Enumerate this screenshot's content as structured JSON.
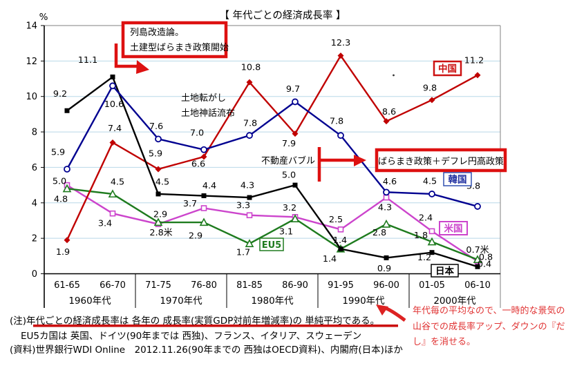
{
  "title": "【 年代ごとの経済成長率 】",
  "chart_data": {
    "type": "line",
    "y_unit": "%",
    "ylim": [
      0,
      14
    ],
    "y_ticks": [
      0,
      2,
      4,
      6,
      8,
      10,
      12,
      14
    ],
    "categories": [
      "61-65",
      "66-70",
      "71-75",
      "76-80",
      "81-85",
      "86-90",
      "91-95",
      "96-00",
      "01-05",
      "06-10"
    ],
    "decades": [
      "1960年代",
      "1970年代",
      "1980年代",
      "1990年代",
      "2000年代"
    ],
    "grid": true,
    "gridline_color": "#b8d8e8",
    "series": [
      {
        "name": "米国",
        "key": "us",
        "color": "#cc44cc",
        "marker": "square-open",
        "values": [
          5.0,
          3.4,
          2.8,
          3.7,
          3.3,
          3.2,
          2.5,
          4.3,
          2.4,
          0.7
        ],
        "labels": [
          "5.0",
          "3.4",
          "2.8米",
          "3.7",
          "3.3",
          "3.2",
          "2.5",
          "4.3",
          "2.4",
          "0.7米"
        ],
        "label_offsets": [
          [
            -11,
            -6
          ],
          [
            -11,
            14
          ],
          [
            4,
            12
          ],
          [
            -20,
            -7
          ],
          [
            -9,
            -15
          ],
          [
            -8,
            -14
          ],
          [
            -7,
            -15
          ],
          [
            -2,
            14
          ],
          [
            -9,
            -20
          ],
          [
            0,
            -17
          ]
        ]
      },
      {
        "name": "EU5",
        "key": "eu5",
        "color": "#1e7b1e",
        "marker": "triangle-open",
        "values": [
          4.8,
          4.5,
          2.9,
          2.9,
          1.7,
          3.1,
          1.4,
          2.8,
          1.8,
          0.8
        ],
        "labels": [
          "4.8",
          "4.5",
          "2.9",
          "2.9",
          "1.7",
          "3.1",
          "1.4",
          "2.8",
          "1.8",
          "0.8"
        ],
        "label_offsets": [
          [
            -9,
            15
          ],
          [
            7,
            -18
          ],
          [
            3,
            -12
          ],
          [
            -12,
            19
          ],
          [
            -9,
            12
          ],
          [
            -13,
            18
          ],
          [
            -1,
            -13
          ],
          [
            -10,
            12
          ],
          [
            -16,
            -10
          ],
          [
            12,
            -4
          ]
        ]
      },
      {
        "name": "中国",
        "key": "china",
        "color": "#c00000",
        "marker": "diamond-filled",
        "values": [
          1.9,
          7.4,
          5.9,
          6.6,
          10.8,
          7.9,
          12.3,
          8.6,
          9.8,
          11.2
        ],
        "labels": [
          "1.9",
          "7.4",
          "5.9",
          "6.6",
          "10.8",
          "7.9",
          "12.3",
          "8.6",
          "9.8",
          "11.2"
        ],
        "label_offsets": [
          [
            -6,
            17
          ],
          [
            3,
            -21
          ],
          [
            -4,
            -23
          ],
          [
            -8,
            10
          ],
          [
            2,
            -22
          ],
          [
            -9,
            14
          ],
          [
            0,
            -19
          ],
          [
            4,
            -14
          ],
          [
            -3,
            -18
          ],
          [
            -5,
            -22
          ]
        ]
      },
      {
        "name": "日本",
        "key": "japan",
        "color": "#000000",
        "marker": "square-filled",
        "values": [
          9.2,
          11.1,
          4.5,
          4.4,
          4.3,
          5.0,
          1.4,
          0.9,
          1.2,
          0.4
        ],
        "labels": [
          "9.2",
          "11.1",
          "4.5",
          "4.4",
          "4.3",
          "5.0",
          "1.4",
          "0.9",
          "1.2",
          "0.4"
        ],
        "label_offsets": [
          [
            -10,
            -25
          ],
          [
            -36,
            -25
          ],
          [
            6,
            -18
          ],
          [
            8,
            -15
          ],
          [
            -3,
            -18
          ],
          [
            -9,
            -15
          ],
          [
            -16,
            14
          ],
          [
            -3,
            15
          ],
          [
            -11,
            7
          ],
          [
            10,
            -4
          ]
        ]
      },
      {
        "name": "韓国",
        "key": "korea",
        "color": "#000090",
        "marker": "circle-open",
        "values": [
          5.9,
          10.6,
          7.6,
          7.0,
          7.8,
          9.7,
          7.8,
          4.6,
          4.5,
          3.8
        ],
        "labels": [
          "5.9",
          "10.6",
          "7.6",
          "7.0",
          "7.8",
          "9.7",
          "7.8",
          "4.6",
          "4.5",
          "3.8"
        ],
        "label_offsets": [
          [
            -13,
            -25
          ],
          [
            2,
            26
          ],
          [
            -3,
            -19
          ],
          [
            -10,
            -25
          ],
          [
            1,
            -18
          ],
          [
            -3,
            -19
          ],
          [
            -6,
            -21
          ],
          [
            5,
            -16
          ],
          [
            -3,
            -19
          ],
          [
            -6,
            -30
          ]
        ]
      }
    ]
  },
  "annotations": {
    "retto_line1": "列島改造論。",
    "retto_line2": "土建型ばらまき政策開始",
    "tochi_korogashi": "土地転がし",
    "tochi_shinwa": "土地神話流布",
    "fudosan_bubble": "不動産バブル",
    "baramaki": "ばらまき政策＋デフレ円高政策"
  },
  "notes": {
    "line1": "(注)年代ごとの経済成長率は 各年の 成長率(実質GDP対前年増減率)の 単純平均である。",
    "line2": "EU5カ国は 英国、ドイツ(90年までは 西独)、フランス、イタリア、スウェーデン",
    "line3": "(資料)世界銀行WDI Online　2012.11.26(90年までの 西独はOECD資料)、内閣府(日本)ほか"
  },
  "red_note": {
    "line1": "年代毎の平均なので、一時的な景気の",
    "line2": "山谷での成長率アップ、ダウンの『だま",
    "line3": "し』を消せる。"
  },
  "colors": {
    "annotation_red": "#dd1111",
    "note_red": "#e03333",
    "gridline": "#b8d8e8",
    "china": "#c00000",
    "korea": "#000090",
    "japan": "#000000",
    "us": "#cc44cc",
    "eu5": "#1e7b1e"
  }
}
